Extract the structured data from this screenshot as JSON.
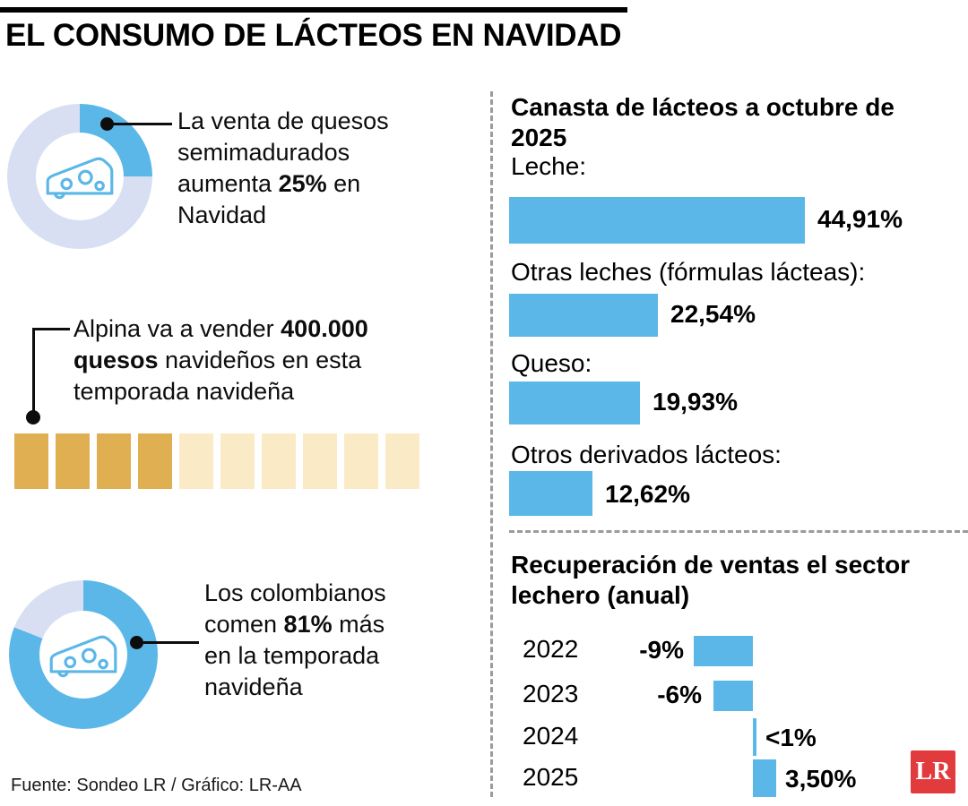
{
  "title": "EL CONSUMO DE LÁCTEOS EN NAVIDAD",
  "source": "Fuente: Sondeo LR / Gráfico: LR-AA",
  "logo_text": "LR",
  "colors": {
    "blue": "#5BB7E8",
    "lavender": "#D8DFF3",
    "gold": "#E0AF52",
    "cream": "#FAEBC6",
    "red": "#E23B3E"
  },
  "facts": {
    "cheese_sales": {
      "pre": "La venta de quesos semimadurados aumenta ",
      "bold": "25%",
      "post": " en Navidad",
      "percent": 25
    },
    "alpina": {
      "pre": "Alpina va a vender ",
      "bold": "400.000 quesos",
      "post": " navideños en esta temporada navideña",
      "waffle": {
        "filled": 4,
        "total": 10
      }
    },
    "consumption": {
      "pre": "Los colombianos comen ",
      "bold": "81%",
      "post": " más en la temporada navideña",
      "percent": 81
    }
  },
  "basket": {
    "title": "Canasta de lácteos a octubre de 2025",
    "items": [
      {
        "label": "Leche:",
        "value": 44.91,
        "display": "44,91%"
      },
      {
        "label": "Otras leches (fórmulas lácteas):",
        "value": 22.54,
        "display": "22,54%"
      },
      {
        "label": "Queso:",
        "value": 19.93,
        "display": "19,93%"
      },
      {
        "label": "Otros derivados lácteos:",
        "value": 12.62,
        "display": "12,62%"
      }
    ]
  },
  "recovery": {
    "title": "Recuperación de ventas el sector lechero (anual)",
    "items": [
      {
        "year": "2022",
        "value": -9,
        "display": "-9%"
      },
      {
        "year": "2023",
        "value": -6,
        "display": "-6%"
      },
      {
        "year": "2024",
        "value": 0.5,
        "display": "<1%"
      },
      {
        "year": "2025",
        "value": 3.5,
        "display": "3,50%"
      }
    ]
  },
  "chart_data": [
    {
      "type": "bar",
      "orientation": "horizontal",
      "title": "Canasta de lácteos a octubre de 2025",
      "categories": [
        "Leche",
        "Otras leches (fórmulas lácteas)",
        "Queso",
        "Otros derivados lácteos"
      ],
      "values": [
        44.91,
        22.54,
        19.93,
        12.62
      ],
      "value_labels": [
        "44,91%",
        "22,54%",
        "19,93%",
        "12,62%"
      ],
      "unit": "%",
      "bar_color": "#5BB7E8"
    },
    {
      "type": "bar",
      "orientation": "horizontal",
      "title": "Recuperación de ventas el sector lechero (anual)",
      "categories": [
        "2022",
        "2023",
        "2024",
        "2025"
      ],
      "values": [
        -9,
        -6,
        0.5,
        3.5
      ],
      "value_labels": [
        "-9%",
        "-6%",
        "<1%",
        "3,50%"
      ],
      "unit": "%",
      "bar_color": "#5BB7E8",
      "note": "negative bars extend left of a common axis, positive bars right"
    },
    {
      "type": "pie",
      "title": "La venta de quesos semimadurados aumenta 25% en Navidad",
      "labels": [
        "aumento",
        "resto"
      ],
      "values": [
        25,
        75
      ],
      "colors": [
        "#5BB7E8",
        "#D8DFF3"
      ]
    },
    {
      "type": "pie",
      "title": "Los colombianos comen 81% más en la temporada navideña",
      "labels": [
        "más consumo",
        "resto"
      ],
      "values": [
        81,
        19
      ],
      "colors": [
        "#5BB7E8",
        "#D8DFF3"
      ]
    },
    {
      "type": "waffle",
      "title": "Alpina va a vender 400.000 quesos navideños",
      "filled": 4,
      "total": 10,
      "colors": [
        "#E0AF52",
        "#FAEBC6"
      ]
    }
  ]
}
